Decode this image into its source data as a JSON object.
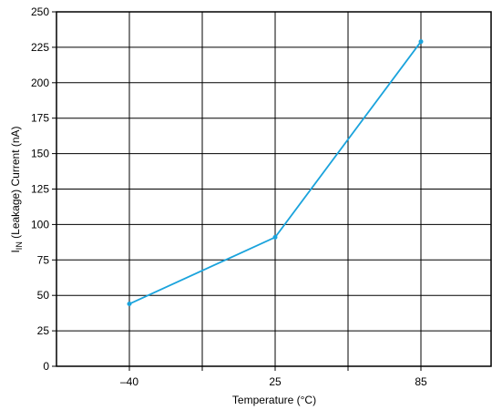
{
  "chart_data": {
    "type": "line",
    "title": "",
    "xlabel": "Temperature (°C)",
    "ylabel": {
      "prefix": "I",
      "subscript": "IN",
      "suffix": " (Leakage) Current (nA)"
    },
    "x_categories": [
      "–40",
      "25",
      "85"
    ],
    "y_ticks": [
      "0",
      "25",
      "50",
      "75",
      "100",
      "125",
      "150",
      "175",
      "200",
      "225",
      "250"
    ],
    "ylim": [
      0,
      250
    ],
    "grid": true,
    "series": [
      {
        "color": "#1aa3dc",
        "points": [
          {
            "x": "–40",
            "y": 44
          },
          {
            "x": "25",
            "y": 91
          },
          {
            "x": "85",
            "y": 229
          }
        ]
      }
    ]
  }
}
